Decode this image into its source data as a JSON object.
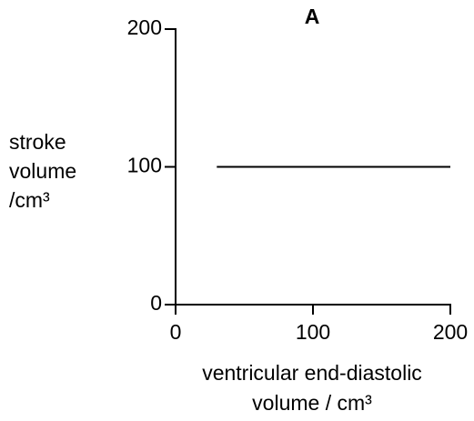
{
  "chart_data": {
    "type": "line",
    "title": "A",
    "ylabel": [
      "stroke",
      "volume",
      "/cm³"
    ],
    "xlabel": [
      "ventricular end-diastolic",
      "volume / cm³"
    ],
    "x": [
      30,
      200
    ],
    "series": [
      {
        "color": "#000000",
        "values": [
          100,
          100
        ]
      }
    ],
    "xlim": [
      0,
      200
    ],
    "xticks": [
      0,
      100,
      200
    ],
    "ylim": [
      0,
      200
    ],
    "yticks": [
      0,
      100,
      200
    ],
    "grid": false
  }
}
